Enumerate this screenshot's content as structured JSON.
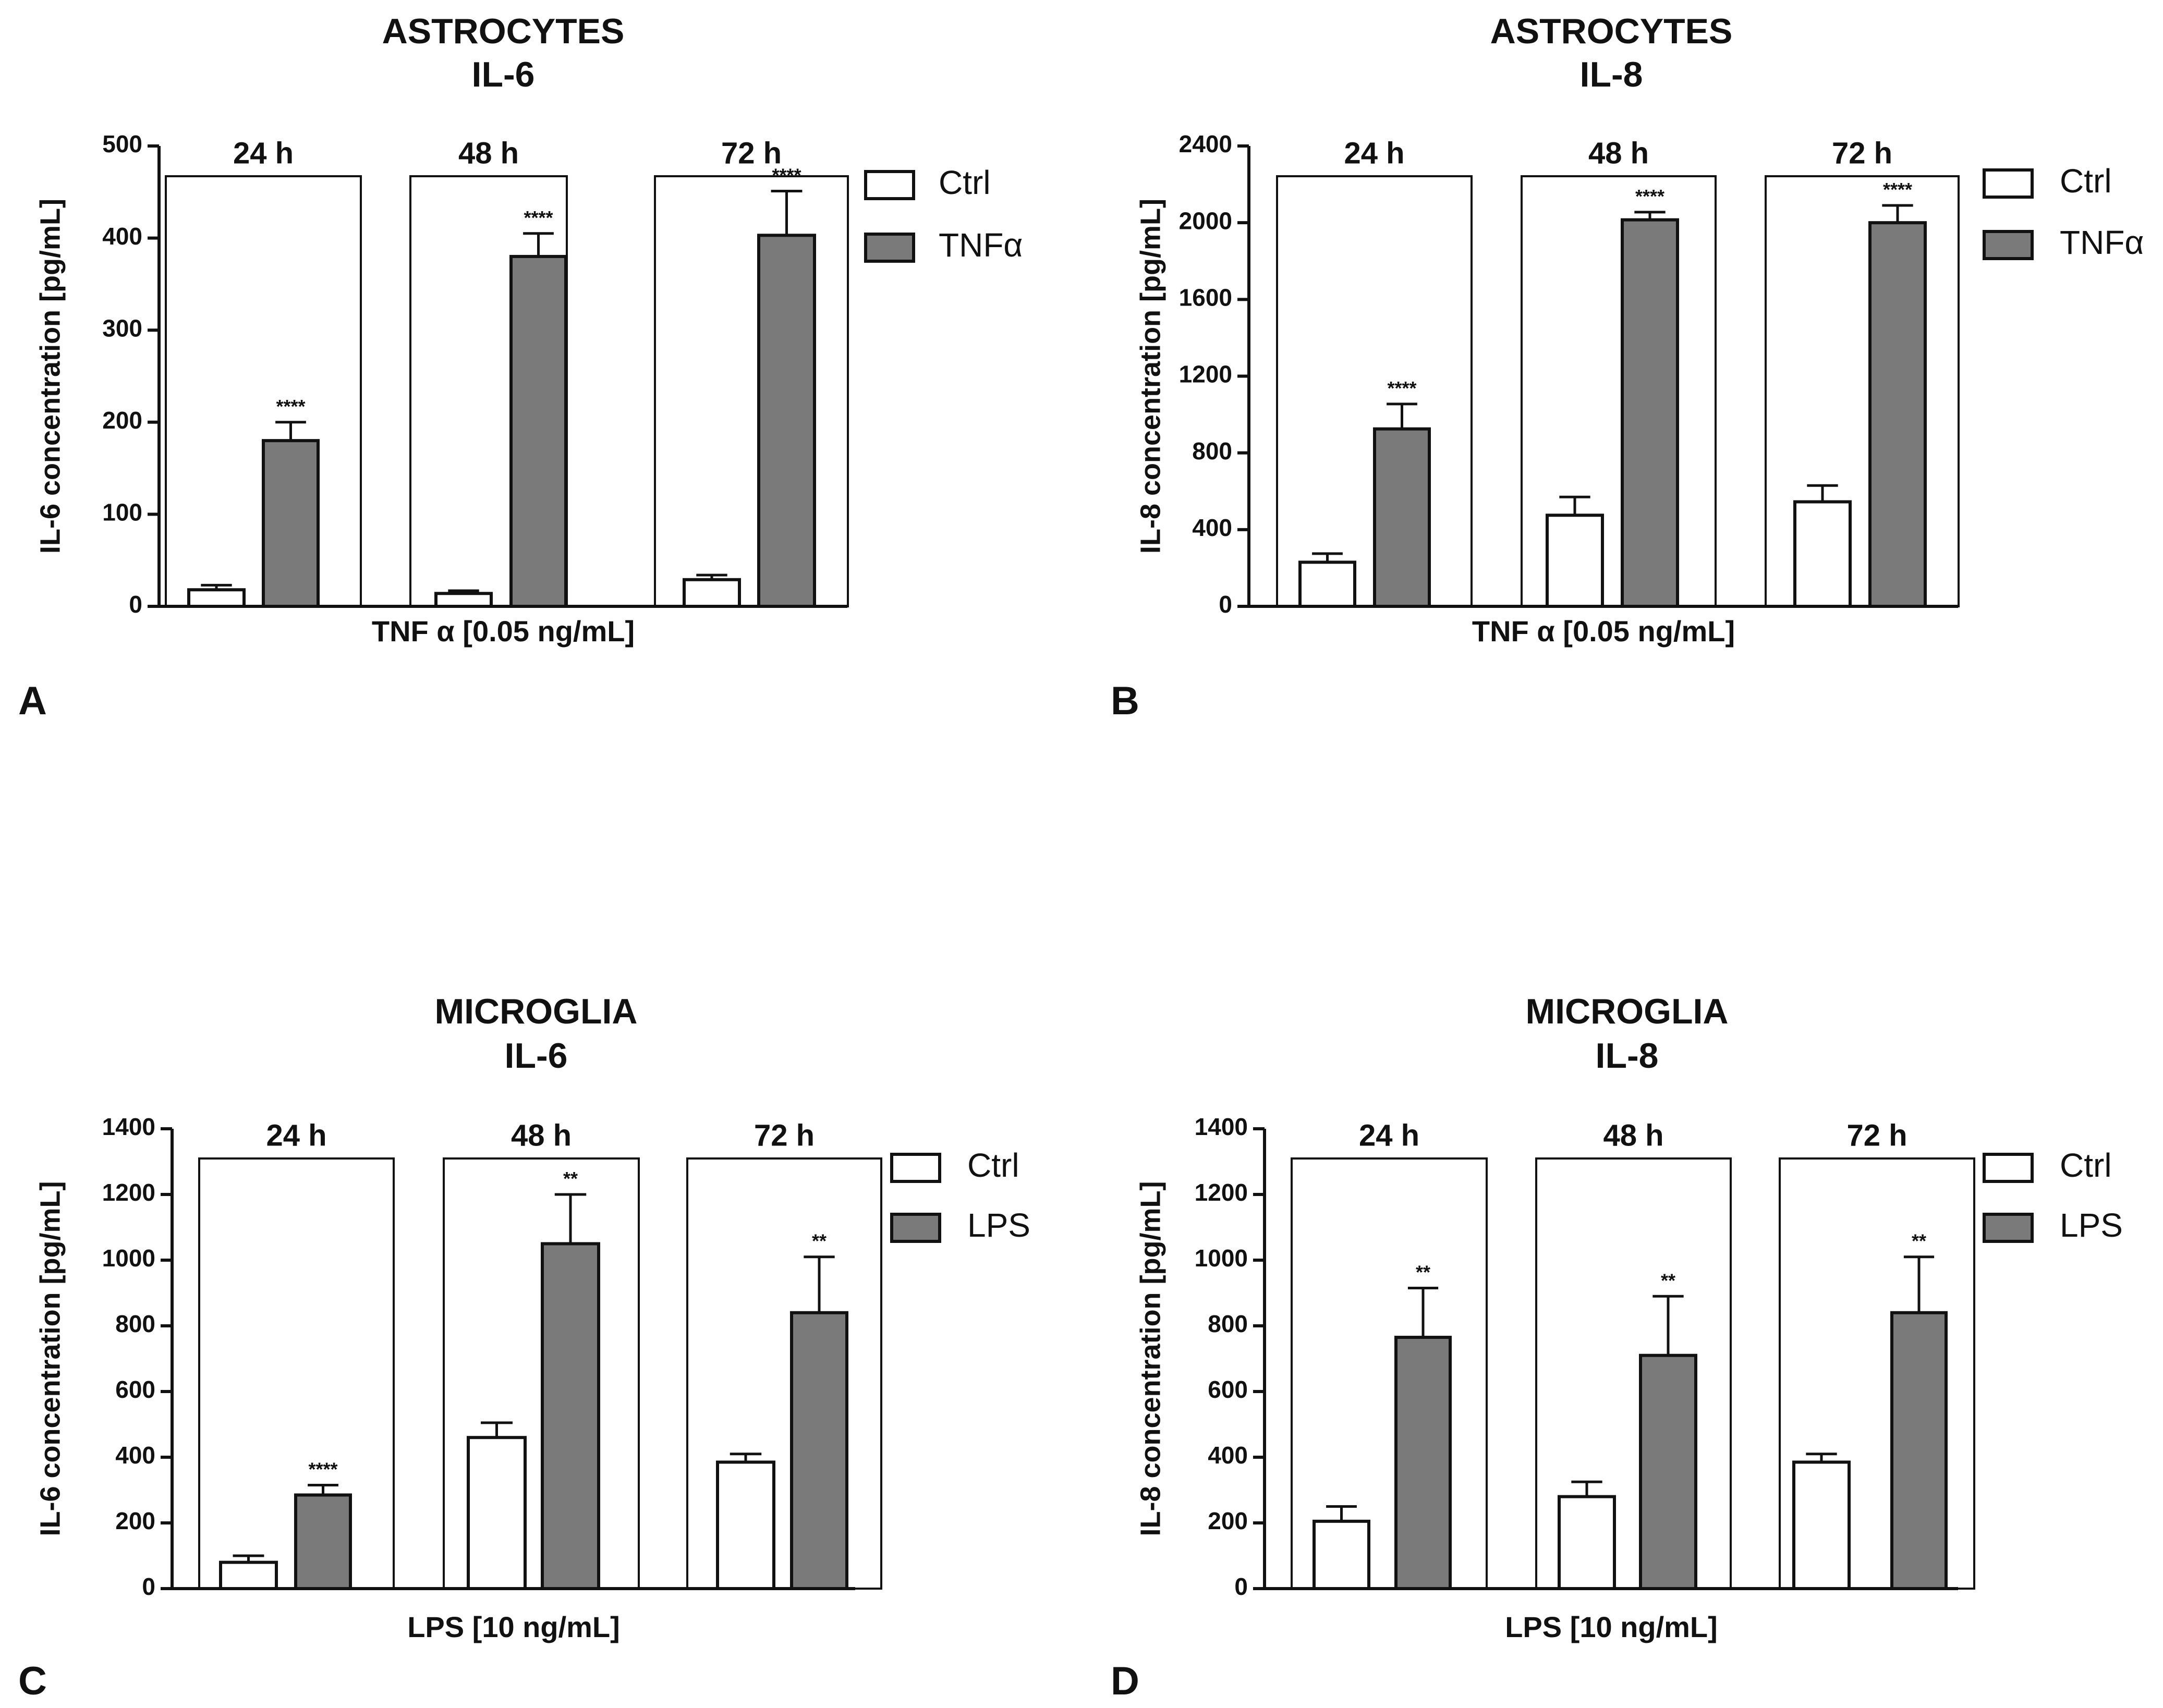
{
  "colors": {
    "ctrl": "#ffffff",
    "treated": "#7a7a7a",
    "outline": "#111111"
  },
  "chart_data": [
    {
      "type": "bar",
      "panel_label": "A",
      "title": [
        "ASTROCYTES",
        "IL-6"
      ],
      "ylabel": "IL-6 concentration [pg/mL]",
      "xlabel": "TNF α [0.05 ng/mL]",
      "ylim": [
        0,
        500
      ],
      "yticks": [
        0,
        100,
        200,
        300,
        400,
        500
      ],
      "categories": [
        "24 h",
        "48 h",
        "72 h"
      ],
      "legend": [
        "Ctrl",
        "TNFα"
      ],
      "series": [
        {
          "name": "Ctrl",
          "values": [
            18,
            14,
            29
          ],
          "errors": [
            5,
            3,
            5
          ]
        },
        {
          "name": "TNFα",
          "values": [
            180,
            380,
            403
          ],
          "errors": [
            20,
            25,
            48
          ]
        }
      ],
      "significance": [
        "****",
        "****",
        "****"
      ]
    },
    {
      "type": "bar",
      "panel_label": "B",
      "title": [
        "ASTROCYTES",
        "IL-8"
      ],
      "ylabel": "IL-8 concentration [pg/mL]",
      "xlabel": "TNF α [0.05 ng/mL]",
      "ylim": [
        0,
        2400
      ],
      "yticks": [
        0,
        400,
        800,
        1200,
        1600,
        2000,
        2400
      ],
      "categories": [
        "24 h",
        "48 h",
        "72 h"
      ],
      "legend": [
        "Ctrl",
        "TNFα"
      ],
      "series": [
        {
          "name": "Ctrl",
          "values": [
            230,
            475,
            545
          ],
          "errors": [
            45,
            95,
            85
          ]
        },
        {
          "name": "TNFα",
          "values": [
            925,
            2015,
            2000
          ],
          "errors": [
            130,
            40,
            90
          ]
        }
      ],
      "significance": [
        "****",
        "****",
        "****"
      ]
    },
    {
      "type": "bar",
      "panel_label": "C",
      "title": [
        "MICROGLIA",
        "IL-6"
      ],
      "ylabel": "IL-6 concentration [pg/mL]",
      "xlabel": "LPS [10 ng/mL]",
      "ylim": [
        0,
        1400
      ],
      "yticks": [
        0,
        200,
        400,
        600,
        800,
        1000,
        1200,
        1400
      ],
      "categories": [
        "24 h",
        "48 h",
        "72 h"
      ],
      "legend": [
        "Ctrl",
        "LPS"
      ],
      "series": [
        {
          "name": "Ctrl",
          "values": [
            80,
            460,
            385
          ],
          "errors": [
            20,
            45,
            25
          ]
        },
        {
          "name": "LPS",
          "values": [
            285,
            1050,
            840
          ],
          "errors": [
            30,
            150,
            170
          ]
        }
      ],
      "significance": [
        "****",
        "**",
        "**"
      ]
    },
    {
      "type": "bar",
      "panel_label": "D",
      "title": [
        "MICROGLIA",
        "IL-8"
      ],
      "ylabel": "IL-8 concentration [pg/mL]",
      "xlabel": "LPS [10 ng/mL]",
      "ylim": [
        0,
        1400
      ],
      "yticks": [
        0,
        200,
        400,
        600,
        800,
        1000,
        1200,
        1400
      ],
      "categories": [
        "24 h",
        "48 h",
        "72 h"
      ],
      "legend": [
        "Ctrl",
        "LPS"
      ],
      "series": [
        {
          "name": "Ctrl",
          "values": [
            205,
            280,
            385
          ],
          "errors": [
            45,
            45,
            25
          ]
        },
        {
          "name": "LPS",
          "values": [
            765,
            710,
            840
          ],
          "errors": [
            150,
            180,
            170
          ]
        }
      ],
      "significance": [
        "**",
        "**",
        "**"
      ]
    }
  ]
}
